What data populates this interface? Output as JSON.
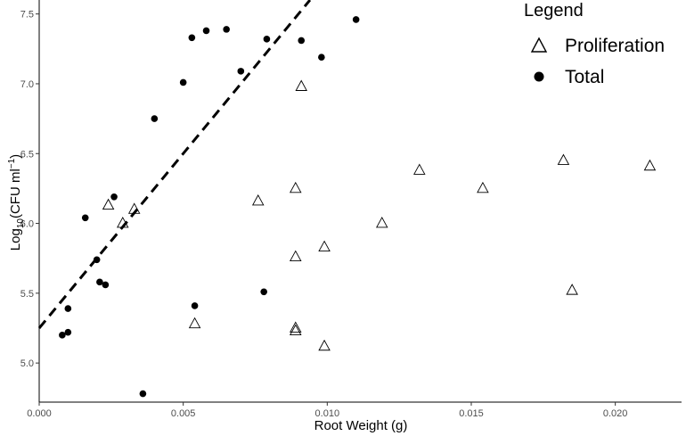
{
  "chart_data": {
    "type": "scatter",
    "xlabel": "Root Weight (g)",
    "ylabel": {
      "prefix": "Log",
      "subscript": "10",
      "middle": "(CFU ml",
      "superscript": "−1",
      "suffix": ")"
    },
    "xlim": [
      0,
      0.0223
    ],
    "ylim": [
      4.72,
      7.6
    ],
    "x_ticks": [
      {
        "value": 0,
        "label": "0.000"
      },
      {
        "value": 0.005,
        "label": "0.005"
      },
      {
        "value": 0.01,
        "label": "0.010"
      },
      {
        "value": 0.015,
        "label": "0.015"
      },
      {
        "value": 0.02,
        "label": "0.020"
      }
    ],
    "y_ticks": [
      {
        "value": 5.0,
        "label": "5.0"
      },
      {
        "value": 5.5,
        "label": "5.5"
      },
      {
        "value": 6.0,
        "label": "6.0"
      },
      {
        "value": 6.5,
        "label": "6.5"
      },
      {
        "value": 7.0,
        "label": "7.0"
      },
      {
        "value": 7.5,
        "label": "7.5"
      }
    ],
    "grid": false,
    "legend": {
      "title": "Legend",
      "position": "top-right",
      "entries": [
        {
          "label": "Proliferation",
          "marker": "open-triangle"
        },
        {
          "label": "Total",
          "marker": "filled-circle"
        }
      ]
    },
    "series": [
      {
        "name": "Total",
        "marker": "filled-circle",
        "color": "#000000",
        "points": [
          {
            "x": 0.0008,
            "y": 5.2
          },
          {
            "x": 0.001,
            "y": 5.22
          },
          {
            "x": 0.001,
            "y": 5.39
          },
          {
            "x": 0.0016,
            "y": 6.04
          },
          {
            "x": 0.002,
            "y": 5.74
          },
          {
            "x": 0.0021,
            "y": 5.58
          },
          {
            "x": 0.0023,
            "y": 5.56
          },
          {
            "x": 0.0026,
            "y": 6.19
          },
          {
            "x": 0.0036,
            "y": 4.78
          },
          {
            "x": 0.004,
            "y": 6.75
          },
          {
            "x": 0.005,
            "y": 7.01
          },
          {
            "x": 0.0053,
            "y": 7.33
          },
          {
            "x": 0.0054,
            "y": 5.41
          },
          {
            "x": 0.0058,
            "y": 7.38
          },
          {
            "x": 0.0065,
            "y": 7.39
          },
          {
            "x": 0.007,
            "y": 7.09
          },
          {
            "x": 0.0078,
            "y": 5.51
          },
          {
            "x": 0.0079,
            "y": 7.32
          },
          {
            "x": 0.0091,
            "y": 7.31
          },
          {
            "x": 0.0098,
            "y": 7.19
          },
          {
            "x": 0.011,
            "y": 7.46
          }
        ]
      },
      {
        "name": "Proliferation",
        "marker": "open-triangle",
        "color": "#000000",
        "points": [
          {
            "x": 0.0024,
            "y": 6.13
          },
          {
            "x": 0.0029,
            "y": 6.0
          },
          {
            "x": 0.0033,
            "y": 6.1
          },
          {
            "x": 0.0054,
            "y": 5.28
          },
          {
            "x": 0.0076,
            "y": 6.16
          },
          {
            "x": 0.0089,
            "y": 6.25
          },
          {
            "x": 0.0089,
            "y": 5.76
          },
          {
            "x": 0.0089,
            "y": 5.25
          },
          {
            "x": 0.0089,
            "y": 5.23
          },
          {
            "x": 0.0091,
            "y": 6.98
          },
          {
            "x": 0.0099,
            "y": 5.83
          },
          {
            "x": 0.0099,
            "y": 5.12
          },
          {
            "x": 0.0119,
            "y": 6.0
          },
          {
            "x": 0.0132,
            "y": 6.38
          },
          {
            "x": 0.0154,
            "y": 6.25
          },
          {
            "x": 0.0182,
            "y": 6.45
          },
          {
            "x": 0.0185,
            "y": 5.52
          },
          {
            "x": 0.0212,
            "y": 6.41
          }
        ]
      }
    ],
    "trendline": {
      "style": "dashed",
      "color": "#000000",
      "intercept": 5.25,
      "slope": 250
    }
  }
}
